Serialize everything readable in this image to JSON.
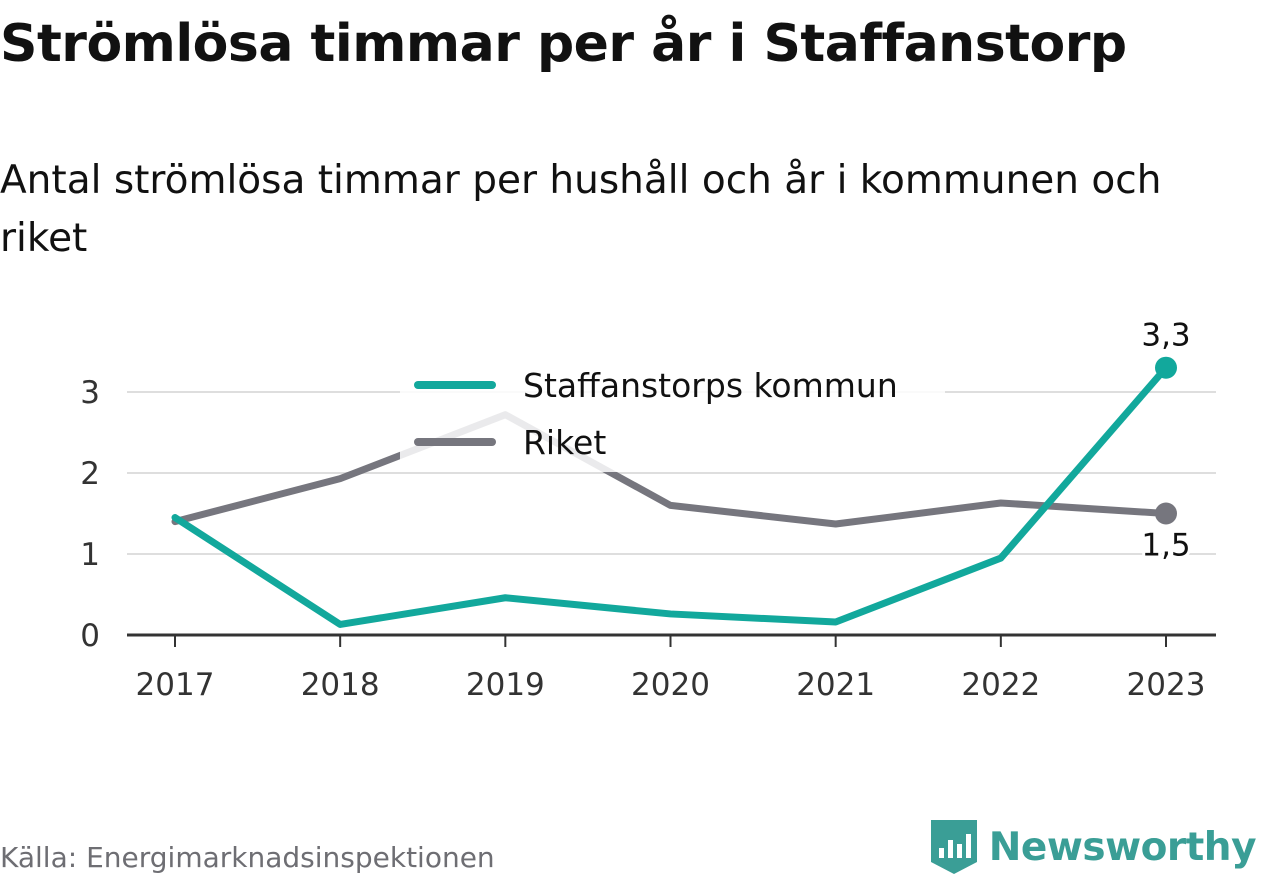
{
  "title": "Strömlösa timmar per år i Staffanstorp",
  "subtitle": "Antal strömlösa timmar per hushåll och år i kommunen och riket",
  "source": "Källa: Energimarknadsinspektionen",
  "brand": {
    "name": "Newsworthy",
    "icon": "newsworthy-logo-icon",
    "color": "#3a9e96"
  },
  "chart_data": {
    "type": "line",
    "title": "Strömlösa timmar per år i Staffanstorp",
    "subtitle": "Antal strömlösa timmar per hushåll och år i kommunen och riket",
    "x": [
      "2017",
      "2018",
      "2019",
      "2020",
      "2021",
      "2022",
      "2023"
    ],
    "ylim": [
      0,
      3.5
    ],
    "yticks": [
      0,
      1,
      2,
      3
    ],
    "ytick_labels": [
      "0",
      "1",
      "2",
      "3"
    ],
    "grid": true,
    "legend": "top-center",
    "series": [
      {
        "name": "Staffanstorps kommun",
        "color": "#12a89c",
        "values": [
          1.45,
          0.13,
          0.46,
          0.26,
          0.16,
          0.95,
          3.3
        ],
        "end_label": "3,3"
      },
      {
        "name": "Riket",
        "color": "#76767e",
        "values": [
          1.4,
          1.93,
          2.72,
          1.6,
          1.37,
          1.63,
          1.5
        ],
        "end_label": "1,5"
      }
    ]
  }
}
